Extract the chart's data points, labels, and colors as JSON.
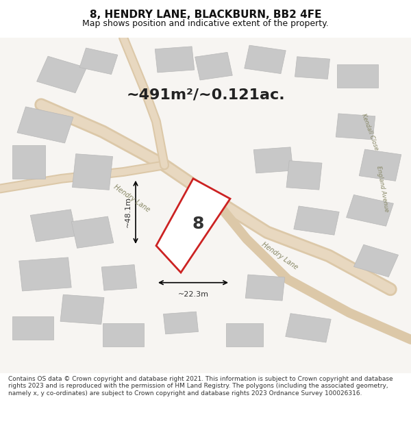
{
  "title": "8, HENDRY LANE, BLACKBURN, BB2 4FE",
  "subtitle": "Map shows position and indicative extent of the property.",
  "area_text": "~491m²/~0.121ac.",
  "dim_width": "~22.3m",
  "dim_height": "~48.1m",
  "property_number": "8",
  "footer": "Contains OS data © Crown copyright and database right 2021. This information is subject to Crown copyright and database rights 2023 and is reproduced with the permission of HM Land Registry. The polygons (including the associated geometry, namely x, y co-ordinates) are subject to Crown copyright and database rights 2023 Ordnance Survey 100026316.",
  "bg_color": "#f0eeec",
  "map_bg": "#f7f5f2",
  "building_fill": "#c8c8c8",
  "building_edge": "#aaaaaa",
  "road_color": "#e8d8c8",
  "plot_fill": "#ffffff",
  "plot_edge": "#cc2222",
  "street_label_color": "#888866",
  "title_color": "#111111",
  "footer_color": "#333333"
}
